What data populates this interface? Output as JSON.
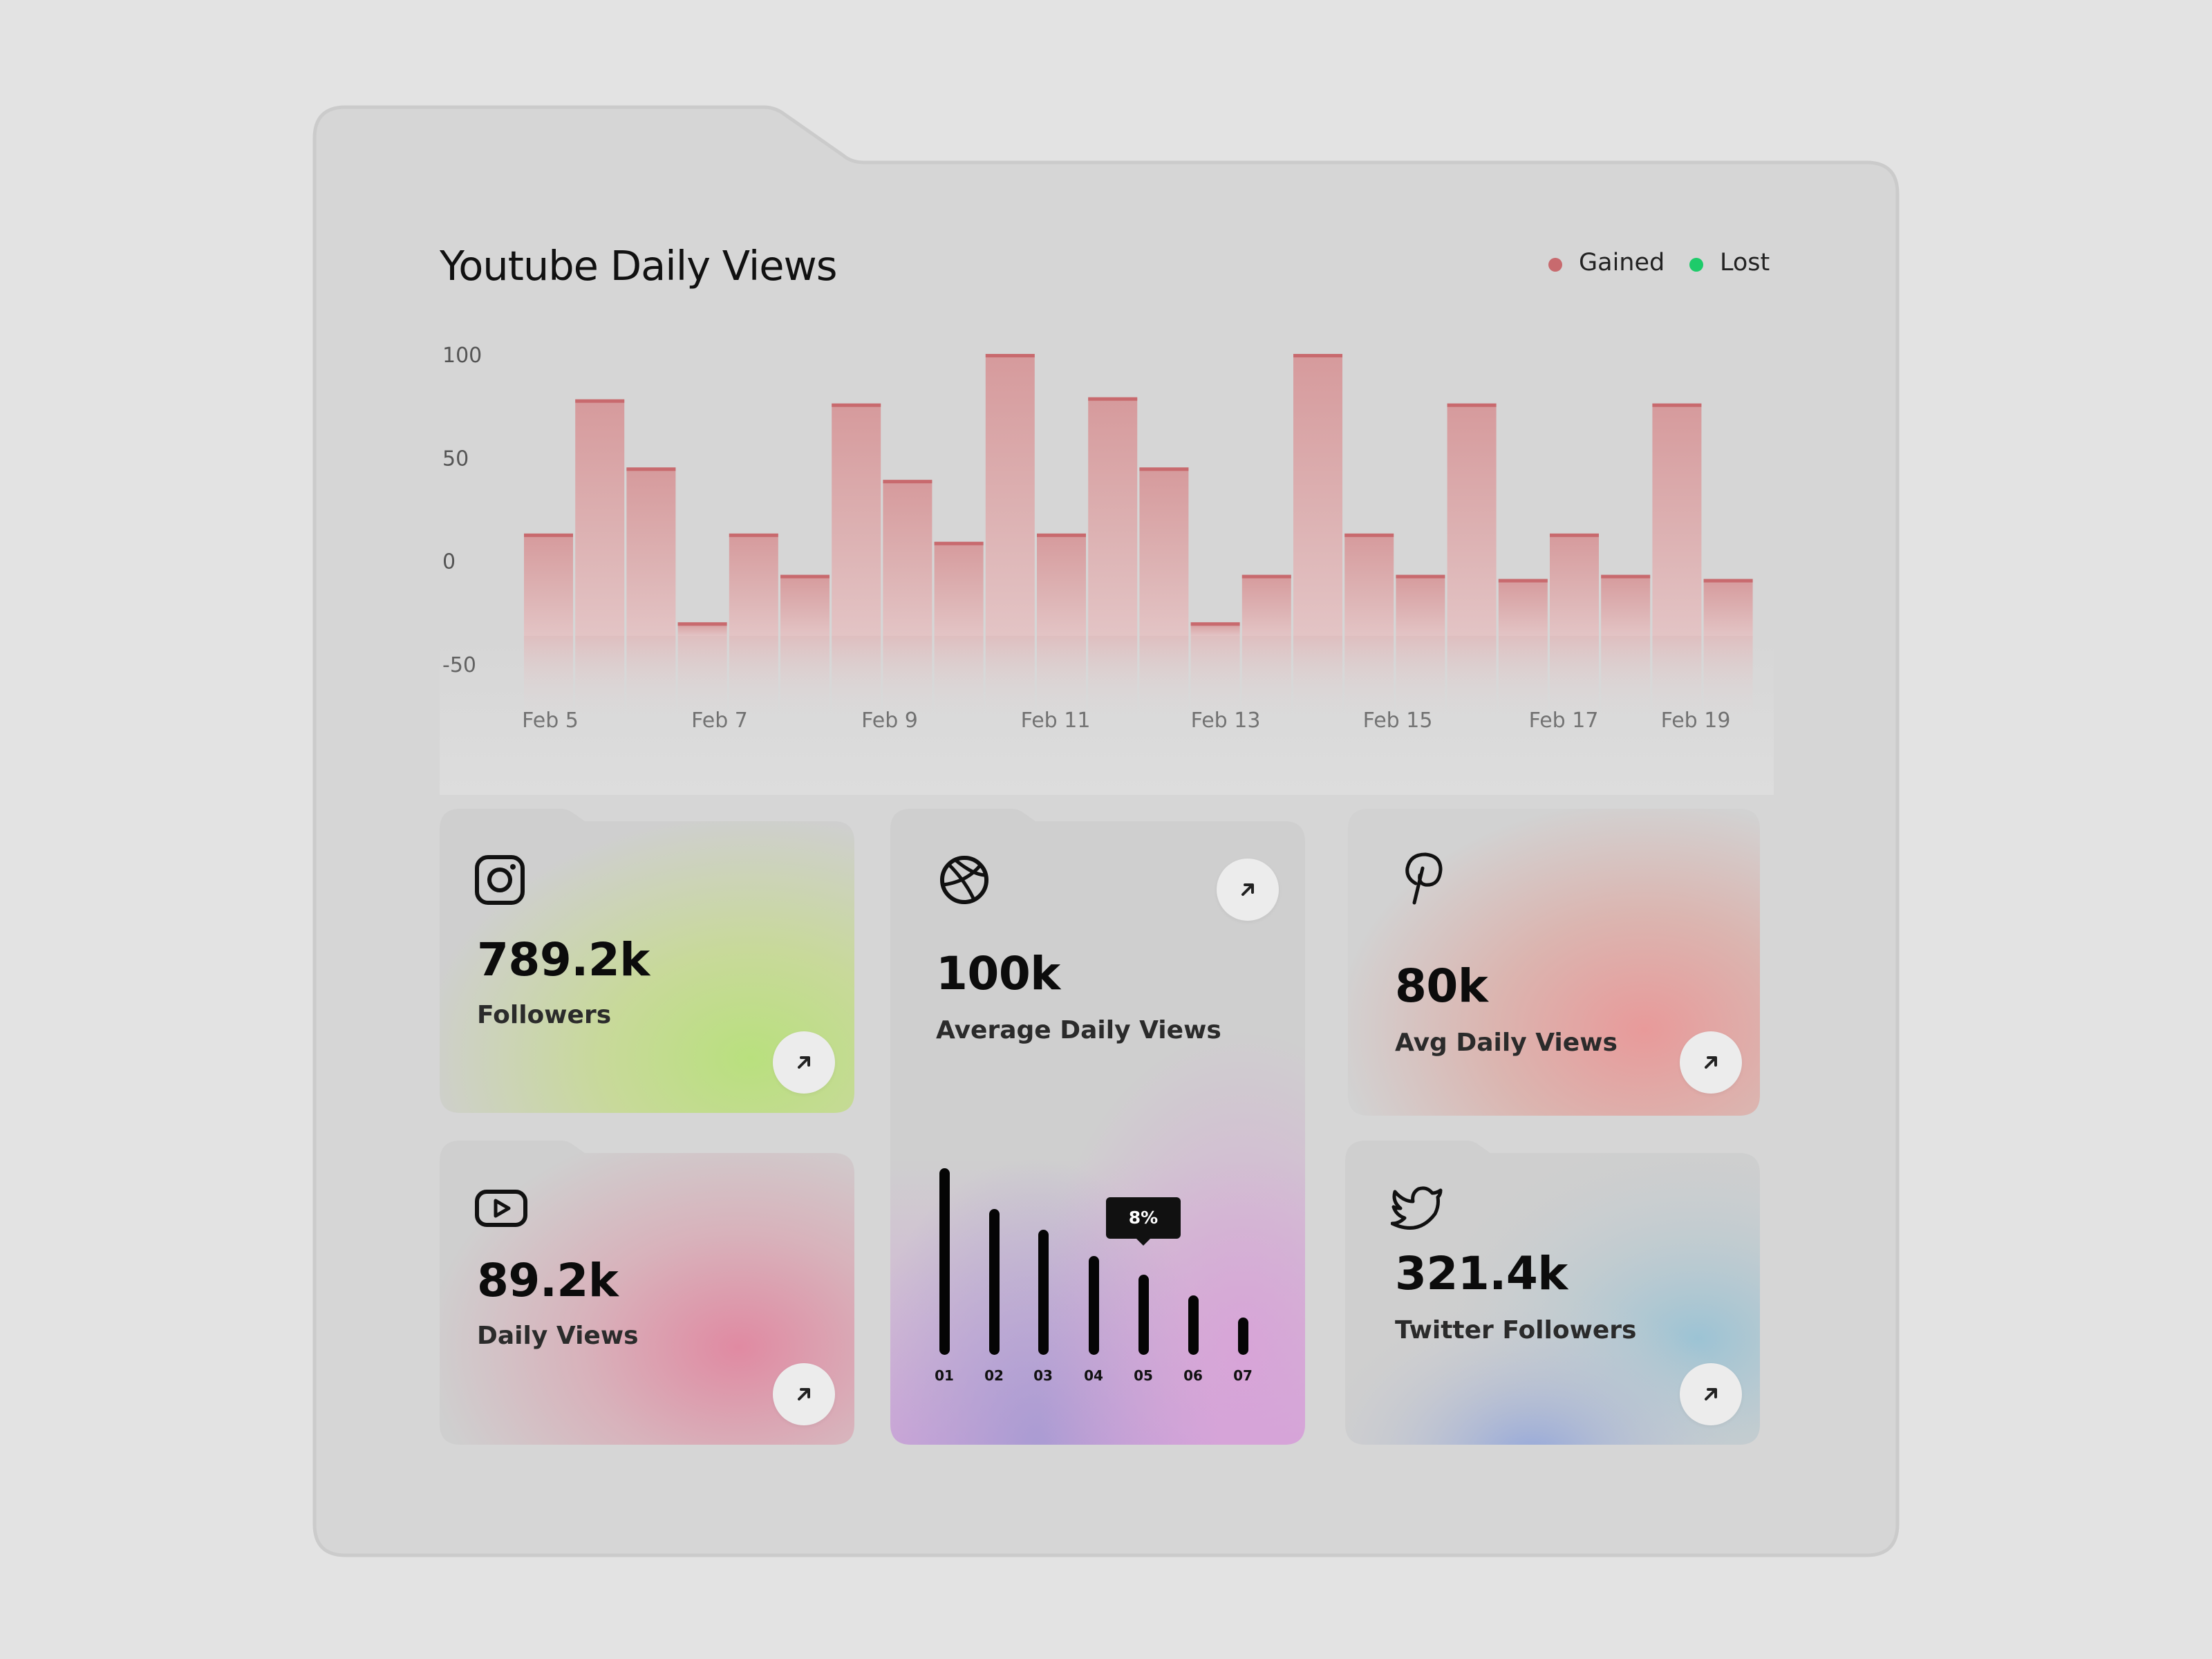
{
  "header": {
    "title": "Youtube Daily Views",
    "legend": [
      {
        "label": "Gained",
        "color": "#c86a6e"
      },
      {
        "label": "Lost",
        "color": "#1ecb6a"
      }
    ]
  },
  "chart_data": {
    "type": "bar",
    "title": "Youtube Daily Views",
    "y_ticks": [
      "100",
      "50",
      "0",
      "-50"
    ],
    "ylim": [
      -50,
      100
    ],
    "x_ticks": [
      "Feb 5",
      "Feb 7",
      "Feb 9",
      "Feb 11",
      "Feb 13",
      "Feb 15",
      "Feb 17",
      "Feb 19"
    ],
    "series": [
      {
        "name": "Gained",
        "color": "#c86a6e",
        "values": [
          13,
          78,
          45,
          -30,
          13,
          -7,
          76,
          39,
          9,
          100,
          13,
          79,
          45,
          -30,
          -7,
          100,
          13,
          -7,
          76,
          -9,
          13,
          -7,
          76,
          -9
        ]
      }
    ]
  },
  "cards": {
    "instagram": {
      "icon": "instagram-icon",
      "value": "789.2k",
      "label": "Followers"
    },
    "youtube": {
      "icon": "youtube-icon",
      "value": "89.2k",
      "label": "Daily Views"
    },
    "dribbble": {
      "icon": "dribbble-icon",
      "value": "100k",
      "label": "Average Daily Views",
      "bars": {
        "labels": [
          "01",
          "02",
          "03",
          "04",
          "05",
          "06",
          "07"
        ],
        "values": [
          100,
          78,
          67,
          53,
          43,
          32,
          20
        ],
        "tooltip": "8%",
        "tooltip_index": 4
      }
    },
    "pinterest": {
      "icon": "pinterest-icon",
      "value": "80k",
      "label": "Avg Daily Views"
    },
    "twitter": {
      "icon": "twitter-icon",
      "value": "321.4k",
      "label": "Twitter Followers"
    }
  }
}
